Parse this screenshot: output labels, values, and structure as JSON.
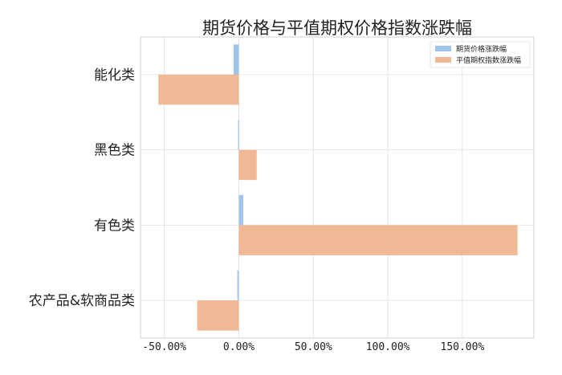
{
  "chart_data": {
    "type": "bar",
    "orientation": "horizontal",
    "title": "期货价格与平值期权价格指数涨跌幅",
    "categories": [
      "能化类",
      "黑色类",
      "有色类",
      "农产品&软商品类"
    ],
    "series": [
      {
        "name": "期货价格涨跌幅",
        "color": "#a1c4eb",
        "values": [
          -3.5,
          -0.5,
          3.0,
          -1.0
        ]
      },
      {
        "name": "平值期权指数涨跌幅",
        "color": "#f0b894",
        "values": [
          -54.0,
          12.0,
          187.0,
          -28.0
        ]
      }
    ],
    "xlim": [
      -66,
      198
    ],
    "xticks": [
      -50,
      0,
      50,
      100,
      150
    ],
    "xtick_labels": [
      "-50.00%",
      "0.00%",
      "50.00%",
      "100.00%",
      "150.00%"
    ],
    "grid": true,
    "legend_position": "top-right",
    "xlabel": "",
    "ylabel": ""
  }
}
